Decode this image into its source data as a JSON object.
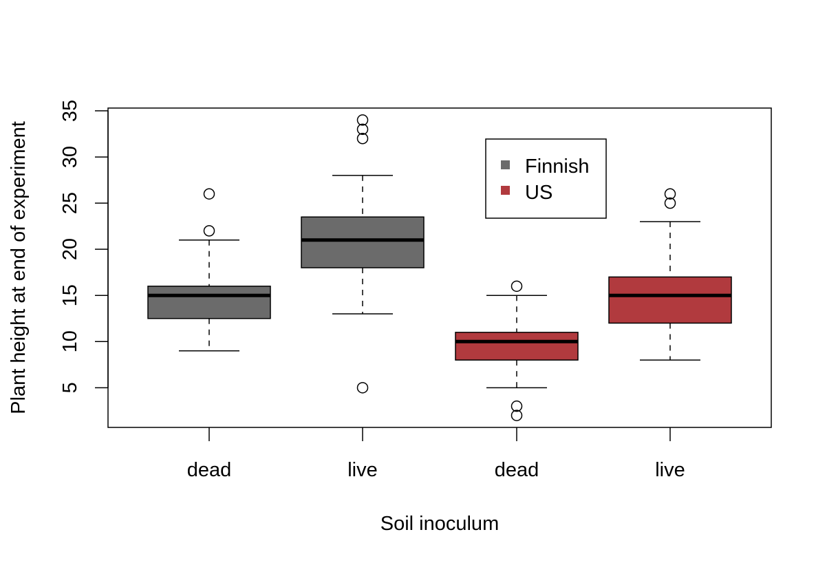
{
  "chart_data": {
    "type": "box",
    "xlabel": "Soil inoculum",
    "ylabel": "Plant height at end of experiment",
    "categories": [
      "dead",
      "live",
      "dead",
      "live"
    ],
    "y_ticks": [
      5,
      10,
      15,
      20,
      25,
      30,
      35
    ],
    "ylim": [
      0.7,
      35.3
    ],
    "grid": false,
    "legend": {
      "placement": "top-center",
      "entries": [
        {
          "label": "Finnish",
          "color": "#6b6b6b"
        },
        {
          "label": "US",
          "color": "#b13a3e"
        }
      ]
    },
    "boxes": [
      {
        "category": "dead",
        "group": "Finnish",
        "color": "#6b6b6b",
        "whisker_low": 9,
        "q1": 12.5,
        "median": 15,
        "q3": 16,
        "whisker_high": 21,
        "outliers": [
          22,
          26
        ]
      },
      {
        "category": "live",
        "group": "Finnish",
        "color": "#6b6b6b",
        "whisker_low": 13,
        "q1": 18,
        "median": 21,
        "q3": 23.5,
        "whisker_high": 28,
        "outliers": [
          5,
          32,
          33,
          34
        ]
      },
      {
        "category": "dead",
        "group": "US",
        "color": "#b13a3e",
        "whisker_low": 5,
        "q1": 8,
        "median": 10,
        "q3": 11,
        "whisker_high": 15,
        "outliers": [
          2,
          3,
          16
        ]
      },
      {
        "category": "live",
        "group": "US",
        "color": "#b13a3e",
        "whisker_low": 8,
        "q1": 12,
        "median": 15,
        "q3": 17,
        "whisker_high": 23,
        "outliers": [
          25,
          26
        ]
      }
    ]
  }
}
